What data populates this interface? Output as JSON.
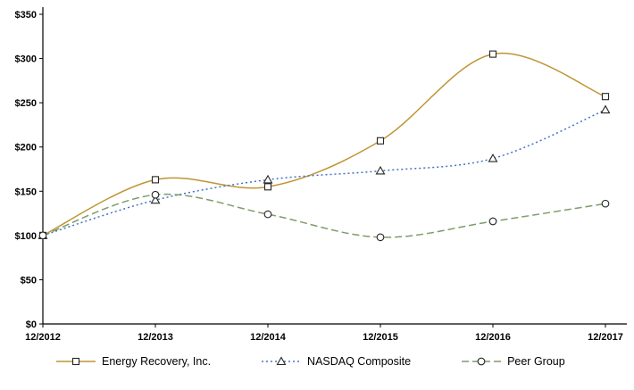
{
  "chart_data": {
    "type": "line",
    "title": "",
    "xlabel": "",
    "ylabel": "",
    "x_labels": [
      "12/2012",
      "12/2013",
      "12/2014",
      "12/2015",
      "12/2016",
      "12/2017"
    ],
    "y_tick_labels": [
      "$0",
      "$50",
      "$100",
      "$150",
      "$200",
      "$250",
      "$300",
      "$350"
    ],
    "ylim": [
      0,
      350
    ],
    "y_tick_step": 50,
    "grid": false,
    "legend_position": "bottom",
    "axis_color": "#000000",
    "marker_fill": "#ffffff",
    "marker_stroke": "#262626",
    "series": [
      {
        "name": "Energy Recovery, Inc.",
        "color": "#BF9533",
        "marker": "square",
        "line_style": "solid",
        "values": [
          100,
          163,
          155,
          207,
          305,
          257
        ]
      },
      {
        "name": "NASDAQ Composite",
        "color": "#4472C4",
        "marker": "triangle",
        "line_style": "dotted",
        "values": [
          100,
          140,
          163,
          173,
          187,
          242
        ]
      },
      {
        "name": "Peer Group",
        "color": "#7E9C68",
        "marker": "circle",
        "line_style": "dashed",
        "values": [
          100,
          146,
          124,
          98,
          116,
          136
        ]
      }
    ]
  }
}
